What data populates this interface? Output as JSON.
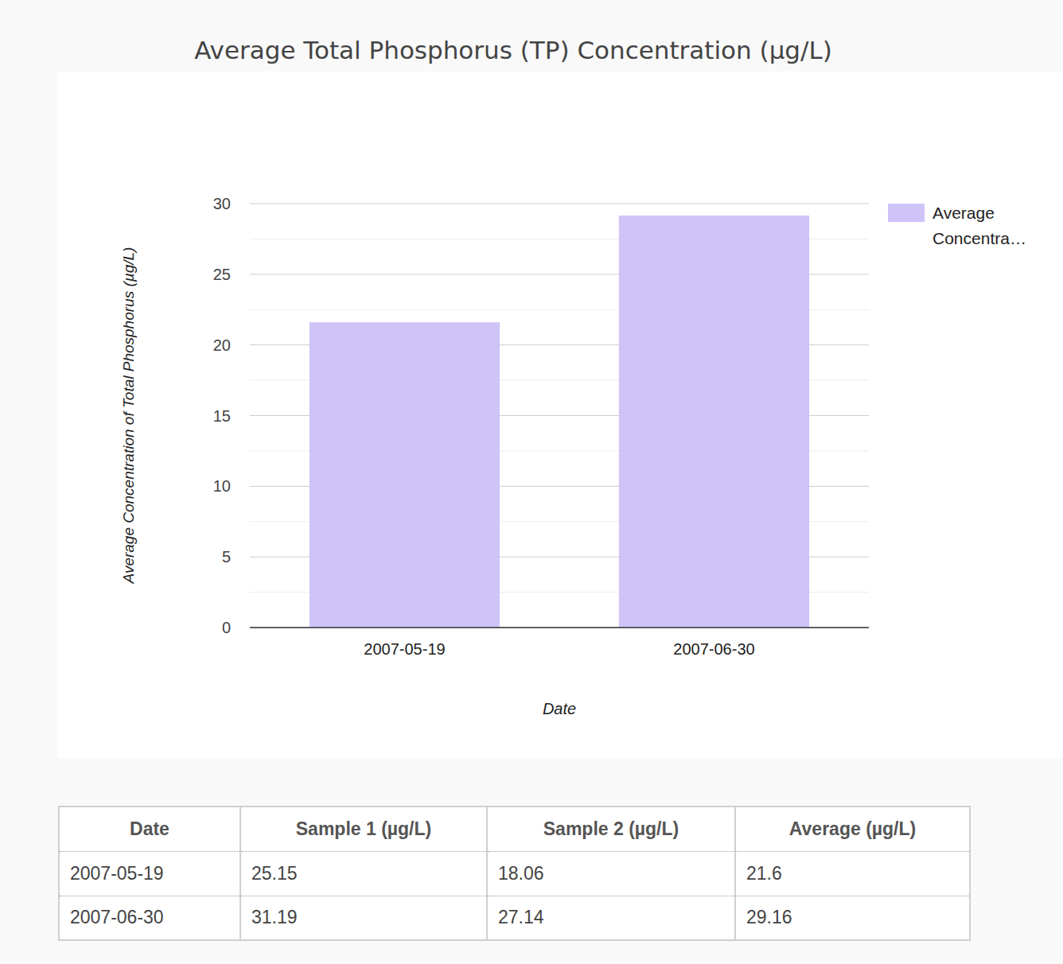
{
  "chart_data": {
    "type": "bar",
    "title": "Average Total Phosphorus (TP) Concentration (µg/L)",
    "x_label": "Date",
    "y_label": "Average Concentration of Total Phosphorus (µg/L)",
    "categories": [
      "2007-05-19",
      "2007-06-30"
    ],
    "series": [
      {
        "name": "Average Concentra…",
        "color": "#cfc3f8",
        "values": [
          21.6,
          29.16
        ]
      }
    ],
    "ylim": [
      0,
      30
    ],
    "yticks": [
      0,
      5,
      10,
      15,
      20,
      25,
      30
    ],
    "grid": true,
    "legend": "right"
  },
  "table": {
    "columns": [
      "Date",
      "Sample 1 (µg/L)",
      "Sample 2 (µg/L)",
      "Average (µg/L)"
    ],
    "rows": [
      [
        "2007-05-19",
        "25.15",
        "18.06",
        "21.6"
      ],
      [
        "2007-06-30",
        "31.19",
        "27.14",
        "29.16"
      ]
    ]
  }
}
